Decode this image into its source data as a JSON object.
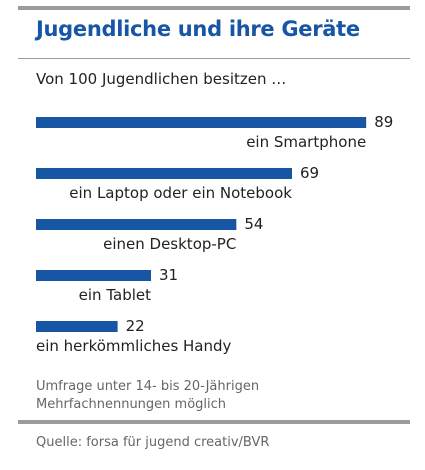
{
  "chart_data": {
    "type": "bar",
    "title": "Jugendliche und ihre Geräte",
    "subtitle": "Von 100 Jugendlichen besitzen …",
    "categories": [
      "ein Smartphone",
      "ein Laptop oder ein Notebook",
      "einen Desktop-PC",
      "ein Tablet",
      "ein herkömmliches Handy"
    ],
    "values": [
      89,
      69,
      54,
      31,
      22
    ],
    "xlim": [
      0,
      100
    ],
    "grid": false,
    "legend": "none",
    "bar_color": "#1756a5"
  },
  "notes": [
    "Umfrage unter 14- bis 20-Jährigen",
    "Mehrfachnennungen möglich"
  ],
  "source": "Quelle: forsa für jugend creativ/BVR"
}
